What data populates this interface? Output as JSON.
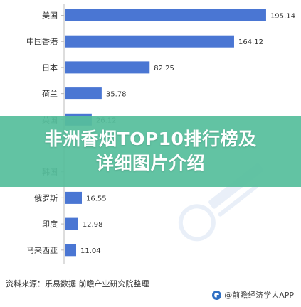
{
  "chart_data": {
    "type": "bar",
    "orientation": "horizontal",
    "categories": [
      "美国",
      "中国香港",
      "日本",
      "荷兰",
      "英国",
      "",
      "韩国",
      "俄罗斯",
      "印度",
      "马来西亚"
    ],
    "values": [
      195.14,
      164.12,
      82.25,
      35.78,
      26.12,
      null,
      null,
      16.55,
      12.98,
      11.04
    ],
    "value_labels": [
      "195.14",
      "164.12",
      "82.25",
      "35.78",
      "26.12",
      "",
      "",
      "16.55",
      "12.98",
      "11.04"
    ],
    "xlim": [
      0,
      200
    ],
    "bar_color": "#4a76d3",
    "grid": false,
    "title": "",
    "xlabel": "",
    "ylabel": ""
  },
  "banner": {
    "line1": "非洲香烟TOP10排行榜及",
    "line2": "详细图片介绍",
    "color": "#56be9c"
  },
  "source": "资料来源：乐易数据 前瞻产业研究院整理",
  "brand": {
    "text": "@前瞻经济学人APP",
    "icon": "brand-logo-icon"
  }
}
